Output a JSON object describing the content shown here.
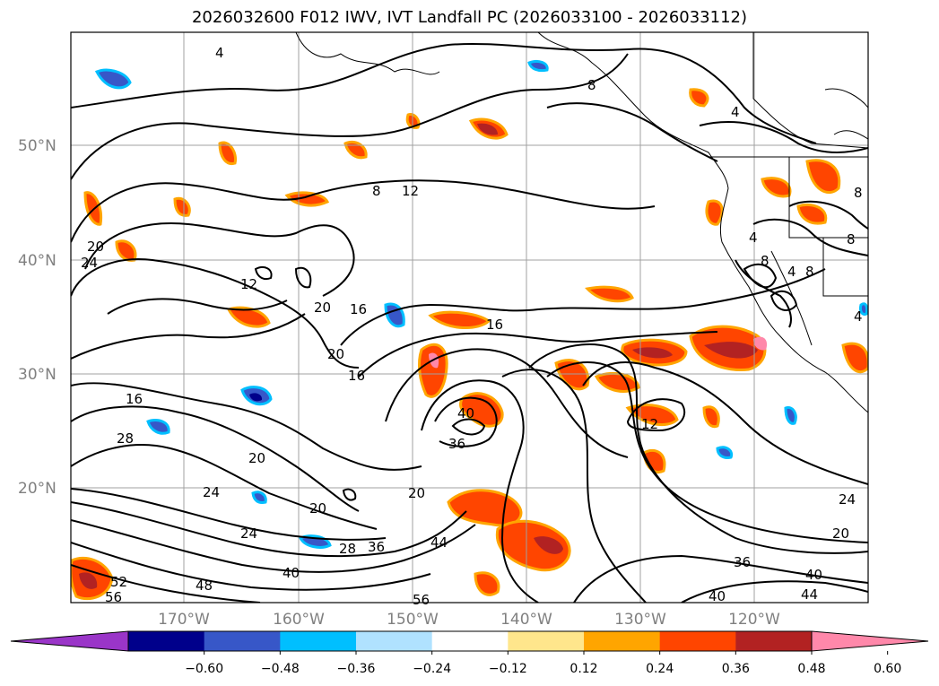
{
  "title": "2026032600 F012 IWV, IVT Landfall PC (2026033100 - 2026033112)",
  "lat_labels": [
    "50°N",
    "40°N",
    "30°N",
    "20°N"
  ],
  "lon_labels": [
    "170°W",
    "160°W",
    "150°W",
    "140°W",
    "130°W",
    "120°W"
  ],
  "contour_labels": [
    "4",
    "8",
    "12",
    "16",
    "20",
    "24",
    "28",
    "36",
    "40",
    "44",
    "48",
    "52",
    "56"
  ],
  "colorbar": {
    "ticks": [
      "−0.60",
      "−0.48",
      "−0.36",
      "−0.24",
      "−0.12",
      "0.12",
      "0.24",
      "0.36",
      "0.48",
      "0.60"
    ],
    "colors": [
      "#9a35c8",
      "#00008b",
      "#3757c8",
      "#00bfff",
      "#b0e2ff",
      "#ffffff",
      "#ffe68c",
      "#ffa500",
      "#ff4500",
      "#b22222",
      "#ff88aa"
    ]
  },
  "colors": {
    "contour": "#000000",
    "grid": "#a0a0a0",
    "coast": "#000000"
  }
}
